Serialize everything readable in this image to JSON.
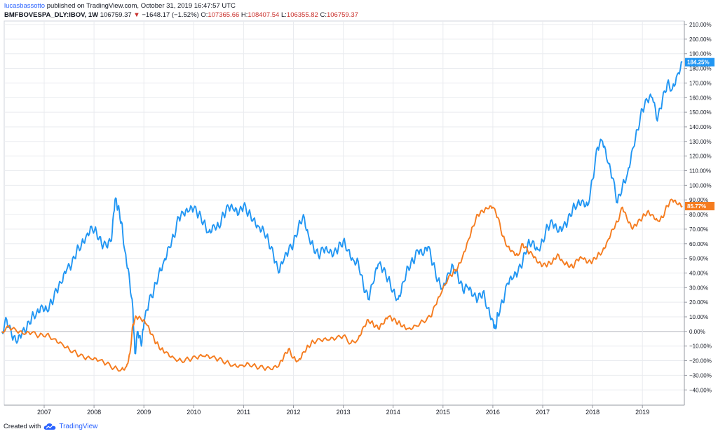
{
  "header": {
    "author": "lucasbassotto",
    "published_text": " published on TradingView.com, October 31, 2019 16:47:57 UTC",
    "symbol": "BMFBOVESPA_DLY:IBOV, 1W",
    "price": "106759.37",
    "arrow": "▼",
    "change": "−1648.17 (−1.52%)",
    "o_label": "O:",
    "o_value": "107365.66",
    "h_label": "H:",
    "h_value": "108407.54",
    "l_label": "L:",
    "l_value": "106355.82",
    "c_label": "C:",
    "c_value": "106759.37"
  },
  "footer": {
    "created_with": "Created with",
    "brand": "TradingView"
  },
  "colors": {
    "blue": "#2196f3",
    "orange": "#f57c1f",
    "grid": "#e9ebef",
    "zero_line": "#b2b5be"
  },
  "chart_data": {
    "type": "line",
    "x_ticks": [
      "2007",
      "2008",
      "2009",
      "2010",
      "2011",
      "2012",
      "2013",
      "2014",
      "2015",
      "2016",
      "2017",
      "2018",
      "2019"
    ],
    "y_ticks": [
      "210.00%",
      "200.00%",
      "190.00%",
      "180.00%",
      "170.00%",
      "160.00%",
      "150.00%",
      "140.00%",
      "130.00%",
      "120.00%",
      "110.00%",
      "100.00%",
      "90.00%",
      "80.00%",
      "70.00%",
      "60.00%",
      "50.00%",
      "40.00%",
      "30.00%",
      "20.00%",
      "10.00%",
      "0.00%",
      "−10.00%",
      "−20.00%",
      "−30.00%",
      "−40.00%"
    ],
    "ylim": [
      -45,
      212
    ],
    "xlim": [
      2006.1,
      2019.85
    ],
    "grid": true,
    "series": [
      {
        "color": "#2196f3",
        "last_label": "184.25%",
        "points": [
          [
            2006.15,
            0
          ],
          [
            2006.25,
            8
          ],
          [
            2006.35,
            -3
          ],
          [
            2006.45,
            -8
          ],
          [
            2006.55,
            -2
          ],
          [
            2006.65,
            2
          ],
          [
            2006.75,
            10
          ],
          [
            2006.85,
            13
          ],
          [
            2006.95,
            18
          ],
          [
            2007.05,
            15
          ],
          [
            2007.15,
            20
          ],
          [
            2007.25,
            28
          ],
          [
            2007.35,
            33
          ],
          [
            2007.45,
            42
          ],
          [
            2007.55,
            45
          ],
          [
            2007.65,
            55
          ],
          [
            2007.75,
            60
          ],
          [
            2007.85,
            66
          ],
          [
            2007.95,
            72
          ],
          [
            2008.05,
            68
          ],
          [
            2008.15,
            60
          ],
          [
            2008.25,
            58
          ],
          [
            2008.35,
            62
          ],
          [
            2008.42,
            90
          ],
          [
            2008.48,
            85
          ],
          [
            2008.55,
            75
          ],
          [
            2008.62,
            55
          ],
          [
            2008.7,
            40
          ],
          [
            2008.78,
            15
          ],
          [
            2008.82,
            -15
          ],
          [
            2008.88,
            0
          ],
          [
            2008.95,
            -10
          ],
          [
            2009.0,
            5
          ],
          [
            2009.1,
            20
          ],
          [
            2009.2,
            28
          ],
          [
            2009.3,
            40
          ],
          [
            2009.4,
            48
          ],
          [
            2009.5,
            58
          ],
          [
            2009.6,
            65
          ],
          [
            2009.7,
            78
          ],
          [
            2009.8,
            80
          ],
          [
            2009.9,
            82
          ],
          [
            2010.0,
            84
          ],
          [
            2010.1,
            80
          ],
          [
            2010.2,
            75
          ],
          [
            2010.3,
            68
          ],
          [
            2010.4,
            73
          ],
          [
            2010.5,
            72
          ],
          [
            2010.6,
            80
          ],
          [
            2010.7,
            85
          ],
          [
            2010.8,
            83
          ],
          [
            2010.9,
            80
          ],
          [
            2011.0,
            86
          ],
          [
            2011.1,
            81
          ],
          [
            2011.2,
            77
          ],
          [
            2011.3,
            72
          ],
          [
            2011.4,
            70
          ],
          [
            2011.5,
            62
          ],
          [
            2011.6,
            52
          ],
          [
            2011.7,
            40
          ],
          [
            2011.8,
            48
          ],
          [
            2011.9,
            55
          ],
          [
            2012.0,
            60
          ],
          [
            2012.1,
            72
          ],
          [
            2012.2,
            80
          ],
          [
            2012.3,
            66
          ],
          [
            2012.4,
            58
          ],
          [
            2012.5,
            52
          ],
          [
            2012.6,
            56
          ],
          [
            2012.7,
            54
          ],
          [
            2012.8,
            52
          ],
          [
            2012.9,
            57
          ],
          [
            2013.0,
            62
          ],
          [
            2013.1,
            56
          ],
          [
            2013.2,
            49
          ],
          [
            2013.3,
            48
          ],
          [
            2013.4,
            32
          ],
          [
            2013.5,
            22
          ],
          [
            2013.6,
            33
          ],
          [
            2013.7,
            46
          ],
          [
            2013.8,
            42
          ],
          [
            2013.9,
            36
          ],
          [
            2014.0,
            28
          ],
          [
            2014.1,
            22
          ],
          [
            2014.2,
            34
          ],
          [
            2014.3,
            44
          ],
          [
            2014.4,
            48
          ],
          [
            2014.5,
            55
          ],
          [
            2014.6,
            52
          ],
          [
            2014.7,
            58
          ],
          [
            2014.8,
            46
          ],
          [
            2014.9,
            35
          ],
          [
            2015.0,
            30
          ],
          [
            2015.1,
            40
          ],
          [
            2015.2,
            45
          ],
          [
            2015.3,
            38
          ],
          [
            2015.4,
            28
          ],
          [
            2015.5,
            30
          ],
          [
            2015.6,
            24
          ],
          [
            2015.7,
            22
          ],
          [
            2015.8,
            27
          ],
          [
            2015.9,
            16
          ],
          [
            2016.0,
            8
          ],
          [
            2016.05,
            2
          ],
          [
            2016.1,
            12
          ],
          [
            2016.2,
            20
          ],
          [
            2016.3,
            33
          ],
          [
            2016.4,
            36
          ],
          [
            2016.5,
            40
          ],
          [
            2016.6,
            48
          ],
          [
            2016.7,
            60
          ],
          [
            2016.8,
            62
          ],
          [
            2016.9,
            56
          ],
          [
            2017.0,
            62
          ],
          [
            2017.1,
            72
          ],
          [
            2017.2,
            74
          ],
          [
            2017.3,
            68
          ],
          [
            2017.4,
            70
          ],
          [
            2017.5,
            75
          ],
          [
            2017.6,
            84
          ],
          [
            2017.7,
            88
          ],
          [
            2017.8,
            90
          ],
          [
            2017.9,
            86
          ],
          [
            2018.0,
            104
          ],
          [
            2018.1,
            126
          ],
          [
            2018.2,
            130
          ],
          [
            2018.3,
            116
          ],
          [
            2018.4,
            105
          ],
          [
            2018.5,
            88
          ],
          [
            2018.6,
            100
          ],
          [
            2018.7,
            108
          ],
          [
            2018.8,
            125
          ],
          [
            2018.9,
            138
          ],
          [
            2019.0,
            152
          ],
          [
            2019.1,
            158
          ],
          [
            2019.2,
            160
          ],
          [
            2019.3,
            144
          ],
          [
            2019.4,
            158
          ],
          [
            2019.5,
            170
          ],
          [
            2019.6,
            166
          ],
          [
            2019.7,
            176
          ],
          [
            2019.8,
            184.25
          ]
        ]
      },
      {
        "color": "#f57c1f",
        "last_label": "85.77%",
        "points": [
          [
            2006.15,
            0
          ],
          [
            2006.3,
            3
          ],
          [
            2006.45,
            0
          ],
          [
            2006.6,
            -2
          ],
          [
            2006.75,
            -1
          ],
          [
            2006.9,
            -3
          ],
          [
            2007.05,
            -2
          ],
          [
            2007.2,
            -5
          ],
          [
            2007.35,
            -8
          ],
          [
            2007.5,
            -12
          ],
          [
            2007.65,
            -15
          ],
          [
            2007.8,
            -18
          ],
          [
            2007.95,
            -19
          ],
          [
            2008.1,
            -20
          ],
          [
            2008.25,
            -22
          ],
          [
            2008.4,
            -25
          ],
          [
            2008.55,
            -26
          ],
          [
            2008.65,
            -24
          ],
          [
            2008.72,
            -15
          ],
          [
            2008.78,
            5
          ],
          [
            2008.85,
            10
          ],
          [
            2008.95,
            8
          ],
          [
            2009.05,
            5
          ],
          [
            2009.15,
            -2
          ],
          [
            2009.25,
            -8
          ],
          [
            2009.35,
            -12
          ],
          [
            2009.45,
            -14
          ],
          [
            2009.6,
            -18
          ],
          [
            2009.75,
            -20
          ],
          [
            2009.9,
            -19
          ],
          [
            2010.05,
            -18
          ],
          [
            2010.2,
            -17
          ],
          [
            2010.35,
            -18
          ],
          [
            2010.5,
            -19
          ],
          [
            2010.65,
            -21
          ],
          [
            2010.8,
            -23
          ],
          [
            2010.95,
            -23
          ],
          [
            2011.1,
            -22
          ],
          [
            2011.25,
            -24
          ],
          [
            2011.4,
            -25
          ],
          [
            2011.55,
            -26
          ],
          [
            2011.7,
            -24
          ],
          [
            2011.8,
            -18
          ],
          [
            2011.9,
            -12
          ],
          [
            2012.0,
            -18
          ],
          [
            2012.1,
            -20
          ],
          [
            2012.2,
            -14
          ],
          [
            2012.3,
            -10
          ],
          [
            2012.4,
            -7
          ],
          [
            2012.55,
            -6
          ],
          [
            2012.7,
            -6
          ],
          [
            2012.85,
            -5
          ],
          [
            2013.0,
            -3
          ],
          [
            2013.15,
            -8
          ],
          [
            2013.3,
            -5
          ],
          [
            2013.4,
            3
          ],
          [
            2013.5,
            8
          ],
          [
            2013.6,
            5
          ],
          [
            2013.7,
            2
          ],
          [
            2013.8,
            5
          ],
          [
            2013.9,
            10
          ],
          [
            2014.0,
            8
          ],
          [
            2014.1,
            6
          ],
          [
            2014.2,
            4
          ],
          [
            2014.3,
            2
          ],
          [
            2014.45,
            4
          ],
          [
            2014.6,
            7
          ],
          [
            2014.75,
            10
          ],
          [
            2014.85,
            18
          ],
          [
            2014.95,
            25
          ],
          [
            2015.1,
            36
          ],
          [
            2015.2,
            40
          ],
          [
            2015.3,
            44
          ],
          [
            2015.4,
            52
          ],
          [
            2015.5,
            62
          ],
          [
            2015.6,
            72
          ],
          [
            2015.7,
            80
          ],
          [
            2015.8,
            82
          ],
          [
            2015.9,
            84
          ],
          [
            2016.0,
            85
          ],
          [
            2016.1,
            78
          ],
          [
            2016.2,
            65
          ],
          [
            2016.3,
            58
          ],
          [
            2016.4,
            55
          ],
          [
            2016.5,
            52
          ],
          [
            2016.6,
            60
          ],
          [
            2016.7,
            55
          ],
          [
            2016.8,
            52
          ],
          [
            2016.9,
            47
          ],
          [
            2017.0,
            45
          ],
          [
            2017.1,
            46
          ],
          [
            2017.2,
            48
          ],
          [
            2017.3,
            53
          ],
          [
            2017.4,
            48
          ],
          [
            2017.5,
            46
          ],
          [
            2017.6,
            44
          ],
          [
            2017.7,
            49
          ],
          [
            2017.8,
            50
          ],
          [
            2017.9,
            47
          ],
          [
            2018.0,
            48
          ],
          [
            2018.1,
            52
          ],
          [
            2018.2,
            55
          ],
          [
            2018.3,
            62
          ],
          [
            2018.4,
            70
          ],
          [
            2018.5,
            75
          ],
          [
            2018.6,
            85
          ],
          [
            2018.7,
            76
          ],
          [
            2018.8,
            70
          ],
          [
            2018.9,
            74
          ],
          [
            2019.0,
            78
          ],
          [
            2019.1,
            82
          ],
          [
            2019.2,
            80
          ],
          [
            2019.3,
            76
          ],
          [
            2019.4,
            78
          ],
          [
            2019.5,
            86
          ],
          [
            2019.6,
            90
          ],
          [
            2019.7,
            87
          ],
          [
            2019.8,
            85.77
          ]
        ]
      }
    ]
  }
}
